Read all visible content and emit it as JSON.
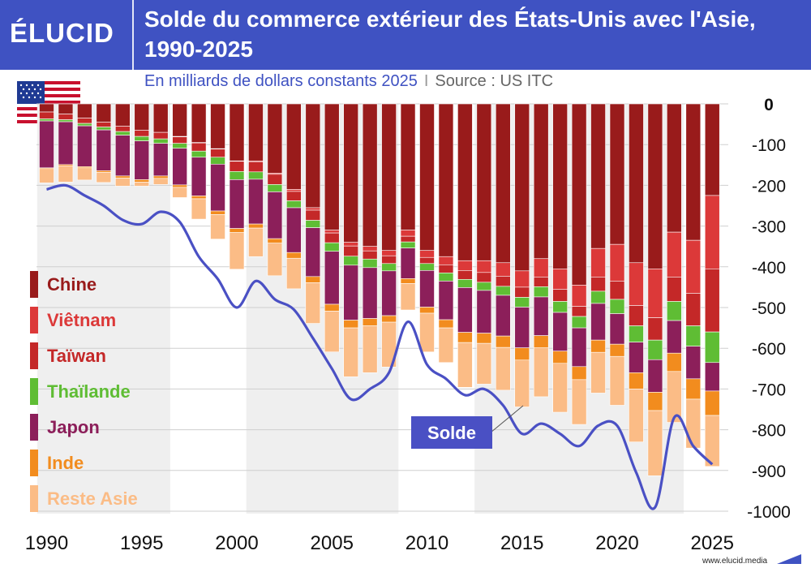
{
  "header": {
    "logo": "ÉLUCID",
    "title": "Solde du commerce extérieur des États-Unis avec l'Asie, 1990-2025",
    "subtitle_main": "En milliards de dollars constants 2025",
    "subtitle_separator": "I",
    "subtitle_source": "Source : US ITC"
  },
  "footer": {
    "url": "www.elucid.media"
  },
  "flag": {
    "icon": "us-flag-icon"
  },
  "colors": {
    "Chine": "#991b1b",
    "Viêtnam": "#dc3939",
    "Taïwan": "#c42828",
    "Thaïlande": "#5fbd34",
    "Japon": "#8c1f5a",
    "Inde": "#f28c1e",
    "Reste Asie": "#fbbc86",
    "Solde": "#4a50c4",
    "shade": "#efefef"
  },
  "legend": [
    {
      "label": "Chine",
      "key": "Chine"
    },
    {
      "label": "Viêtnam",
      "key": "Viêtnam"
    },
    {
      "label": "Taïwan",
      "key": "Taïwan"
    },
    {
      "label": "Thaïlande",
      "key": "Thaïlande"
    },
    {
      "label": "Japon",
      "key": "Japon"
    },
    {
      "label": "Inde",
      "key": "Inde"
    },
    {
      "label": "Reste Asie",
      "key": "Reste Asie"
    }
  ],
  "chart_data": {
    "type": "bar",
    "stacked": true,
    "title": "Solde du commerce extérieur des États-Unis avec l'Asie, 1990-2025",
    "subtitle": "En milliards de dollars constants 2025 I Source : US ITC",
    "x": [
      1990,
      1991,
      1992,
      1993,
      1994,
      1995,
      1996,
      1997,
      1998,
      1999,
      2000,
      2001,
      2002,
      2003,
      2004,
      2005,
      2006,
      2007,
      2008,
      2009,
      2010,
      2011,
      2012,
      2013,
      2014,
      2015,
      2016,
      2017,
      2018,
      2019,
      2020,
      2021,
      2022,
      2023,
      2024,
      2025
    ],
    "x_ticks": [
      1990,
      1995,
      2000,
      2005,
      2010,
      2015,
      2020,
      2025
    ],
    "y_ticks": [
      0,
      -100,
      -200,
      -300,
      -400,
      -500,
      -600,
      -700,
      -800,
      -900,
      -1000
    ],
    "ylim": [
      -1000,
      0
    ],
    "y_axis_side": "right",
    "series": [
      {
        "name": "Chine",
        "values": [
          -20,
          -25,
          -35,
          -45,
          -55,
          -65,
          -70,
          -80,
          -95,
          -110,
          -140,
          -140,
          -170,
          -210,
          -255,
          -310,
          -340,
          -350,
          -360,
          -310,
          -360,
          -375,
          -385,
          -385,
          -390,
          -410,
          -380,
          -405,
          -445,
          -355,
          -345,
          -390,
          -405,
          -315,
          -335,
          -225
        ]
      },
      {
        "name": "Viêtnam",
        "values": [
          0,
          0,
          0,
          0,
          0,
          0,
          0,
          -1,
          -1,
          -1,
          -1,
          -2,
          -3,
          -5,
          -6,
          -7,
          -9,
          -11,
          -13,
          -15,
          -17,
          -20,
          -24,
          -29,
          -33,
          -40,
          -45,
          -50,
          -52,
          -70,
          -90,
          -105,
          -120,
          -110,
          -130,
          -180
        ]
      },
      {
        "name": "Taïwan",
        "values": [
          -17,
          -14,
          -13,
          -12,
          -13,
          -15,
          -16,
          -16,
          -20,
          -20,
          -25,
          -25,
          -25,
          -23,
          -25,
          -24,
          -25,
          -20,
          -19,
          -14,
          -15,
          -20,
          -22,
          -24,
          -25,
          -25,
          -24,
          -30,
          -25,
          -35,
          -45,
          -50,
          -55,
          -60,
          -80,
          -155
        ]
      },
      {
        "name": "Thaïlande",
        "values": [
          -5,
          -5,
          -6,
          -7,
          -9,
          -11,
          -11,
          -12,
          -15,
          -17,
          -20,
          -18,
          -18,
          -17,
          -18,
          -21,
          -22,
          -21,
          -18,
          -15,
          -17,
          -20,
          -20,
          -20,
          -22,
          -24,
          -25,
          -27,
          -28,
          -30,
          -35,
          -40,
          -48,
          -47,
          -50,
          -75
        ]
      },
      {
        "name": "Japon",
        "values": [
          -115,
          -105,
          -100,
          -100,
          -100,
          -95,
          -80,
          -90,
          -95,
          -115,
          -120,
          -110,
          -115,
          -110,
          -120,
          -130,
          -135,
          -125,
          -110,
          -75,
          -90,
          -95,
          -110,
          -105,
          -100,
          -100,
          -95,
          -95,
          -95,
          -90,
          -75,
          -75,
          -80,
          -80,
          -80,
          -70
        ]
      },
      {
        "name": "Inde",
        "values": [
          -2,
          -3,
          -3,
          -4,
          -5,
          -6,
          -6,
          -6,
          -7,
          -9,
          -10,
          -10,
          -11,
          -14,
          -15,
          -17,
          -19,
          -18,
          -16,
          -12,
          -15,
          -20,
          -25,
          -25,
          -28,
          -30,
          -30,
          -30,
          -32,
          -30,
          -30,
          -40,
          -45,
          -45,
          -50,
          -60
        ]
      },
      {
        "name": "Reste Asie",
        "values": [
          -35,
          -40,
          -30,
          -25,
          -20,
          -10,
          -15,
          -25,
          -50,
          -60,
          -90,
          -70,
          -80,
          -75,
          -100,
          -100,
          -120,
          -115,
          -110,
          -65,
          -95,
          -85,
          -110,
          -100,
          -105,
          -115,
          -120,
          -120,
          -110,
          -100,
          -120,
          -130,
          -160,
          -125,
          -120,
          -125
        ]
      }
    ],
    "line": {
      "name": "Solde",
      "values": [
        -210,
        -200,
        -225,
        -250,
        -285,
        -295,
        -265,
        -290,
        -375,
        -430,
        -500,
        -435,
        -480,
        -505,
        -575,
        -650,
        -725,
        -700,
        -660,
        -535,
        -640,
        -675,
        -715,
        -700,
        -740,
        -810,
        -785,
        -810,
        -840,
        -790,
        -790,
        -905,
        -990,
        -770,
        -840,
        -885
      ]
    },
    "label_box": "Solde",
    "shaded_periods": [
      [
        1990,
        1996
      ],
      [
        2001,
        2008
      ],
      [
        2013,
        2023
      ]
    ],
    "axis_ticks": {
      "unit": "milliards de dollars"
    }
  }
}
